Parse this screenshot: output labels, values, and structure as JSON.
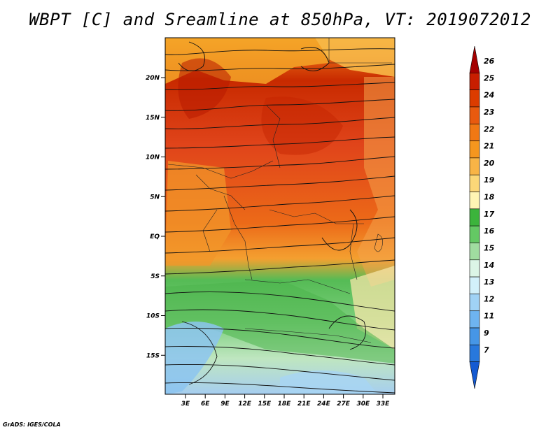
{
  "title": "WBPT [C] and Sreamline at 850hPa, VT: 2019072012",
  "footer": "GrADS: IGES/COLA",
  "map": {
    "lon_labels": [
      "3E",
      "6E",
      "9E",
      "12E",
      "15E",
      "18E",
      "21E",
      "24E",
      "27E",
      "30E",
      "33E"
    ],
    "lat_labels": [
      "20N",
      "15N",
      "10N",
      "5N",
      "EQ",
      "5S",
      "10S",
      "15S"
    ],
    "lat_values": [
      20,
      15,
      10,
      5,
      0,
      -5,
      -10,
      -15
    ]
  },
  "colorbar": {
    "labels": [
      "26",
      "25",
      "24",
      "23",
      "22",
      "21",
      "20",
      "19",
      "18",
      "17",
      "16",
      "15",
      "14",
      "13",
      "12",
      "11",
      "9",
      "7"
    ],
    "colors": [
      "#a50000",
      "#c81e00",
      "#dc3c00",
      "#e85a0f",
      "#f07814",
      "#f5961e",
      "#f8b446",
      "#fbd778",
      "#fff5b4",
      "#3cb43c",
      "#64c864",
      "#a0dca0",
      "#dcf5e6",
      "#d2f0fa",
      "#a0d2f5",
      "#6eb4f0",
      "#4696e6",
      "#2878dc",
      "#145ad2"
    ]
  }
}
